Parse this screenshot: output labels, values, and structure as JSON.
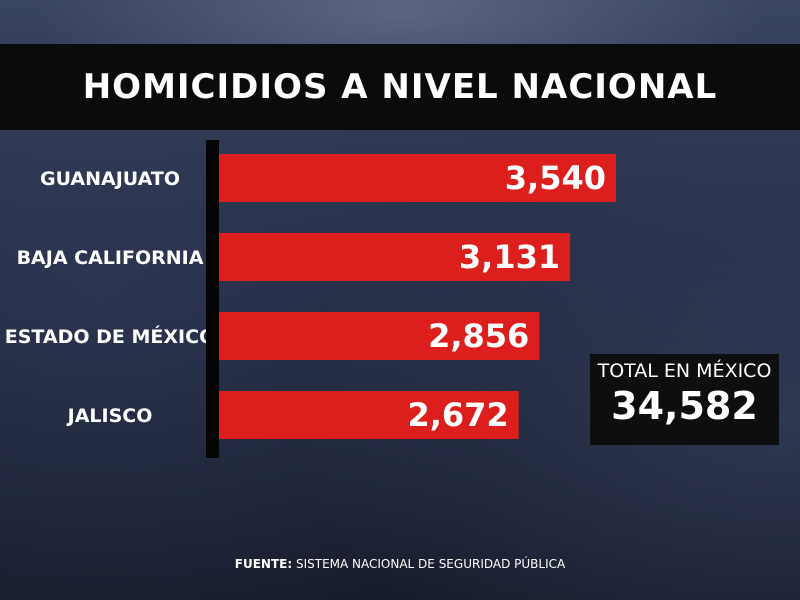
{
  "title": "HOMICIDIOS A NIVEL NACIONAL",
  "chart_data": {
    "type": "bar",
    "orientation": "horizontal",
    "title": "HOMICIDIOS A NIVEL NACIONAL",
    "categories": [
      "GUANAJUATO",
      "BAJA CALIFORNIA",
      "ESTADO DE MÉXICO",
      "JALISCO"
    ],
    "values": [
      3540,
      3131,
      2856,
      2672
    ],
    "value_labels": [
      "3,540",
      "3,131",
      "2,856",
      "2,672"
    ],
    "xlim": [
      0,
      3540
    ],
    "grid": false,
    "bar_color": "#dc1f1c"
  },
  "total": {
    "label": "TOTAL EN MÉXICO",
    "value": "34,582"
  },
  "source": {
    "prefix": "FUENTE:",
    "text": " SISTEMA NACIONAL DE SEGURIDAD PÚBLICA"
  },
  "colors": {
    "bar": "#dc1f1c",
    "title_bar": "#0b0b0d",
    "axis": "#050505"
  }
}
